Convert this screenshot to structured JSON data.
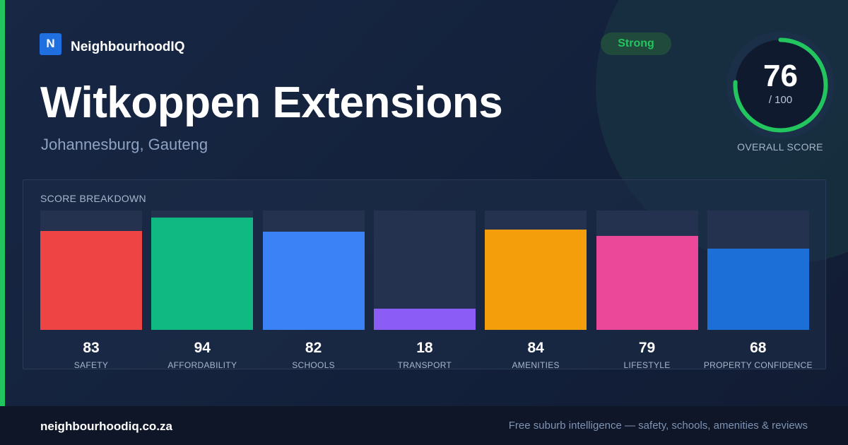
{
  "brand": {
    "logo_letter": "N",
    "name": "NeighbourhoodIQ"
  },
  "suburb": {
    "name": "Witkoppen Extensions",
    "location": "Johannesburg, Gauteng"
  },
  "badge": {
    "label": "Strong",
    "color": "#22c55e"
  },
  "overall": {
    "score": 76,
    "score_text": "76",
    "max_text": "/ 100",
    "label": "OVERALL SCORE",
    "ring_color": "#22c55e"
  },
  "breakdown": {
    "title": "SCORE BREAKDOWN",
    "items": [
      {
        "label": "SAFETY",
        "value": 83,
        "value_text": "83",
        "color": "#ef4444"
      },
      {
        "label": "AFFORDABILITY",
        "value": 94,
        "value_text": "94",
        "color": "#10b981"
      },
      {
        "label": "SCHOOLS",
        "value": 82,
        "value_text": "82",
        "color": "#3b82f6"
      },
      {
        "label": "TRANSPORT",
        "value": 18,
        "value_text": "18",
        "color": "#8b5cf6"
      },
      {
        "label": "AMENITIES",
        "value": 84,
        "value_text": "84",
        "color": "#f59e0b"
      },
      {
        "label": "LIFESTYLE",
        "value": 79,
        "value_text": "79",
        "color": "#ec4899"
      },
      {
        "label": "PROPERTY CONFIDENCE",
        "value": 68,
        "value_text": "68",
        "color": "#1d6fd8"
      }
    ]
  },
  "footer": {
    "site": "neighbourhoodiq.co.za",
    "tagline": "Free suburb intelligence — safety, schools, amenities & reviews"
  }
}
